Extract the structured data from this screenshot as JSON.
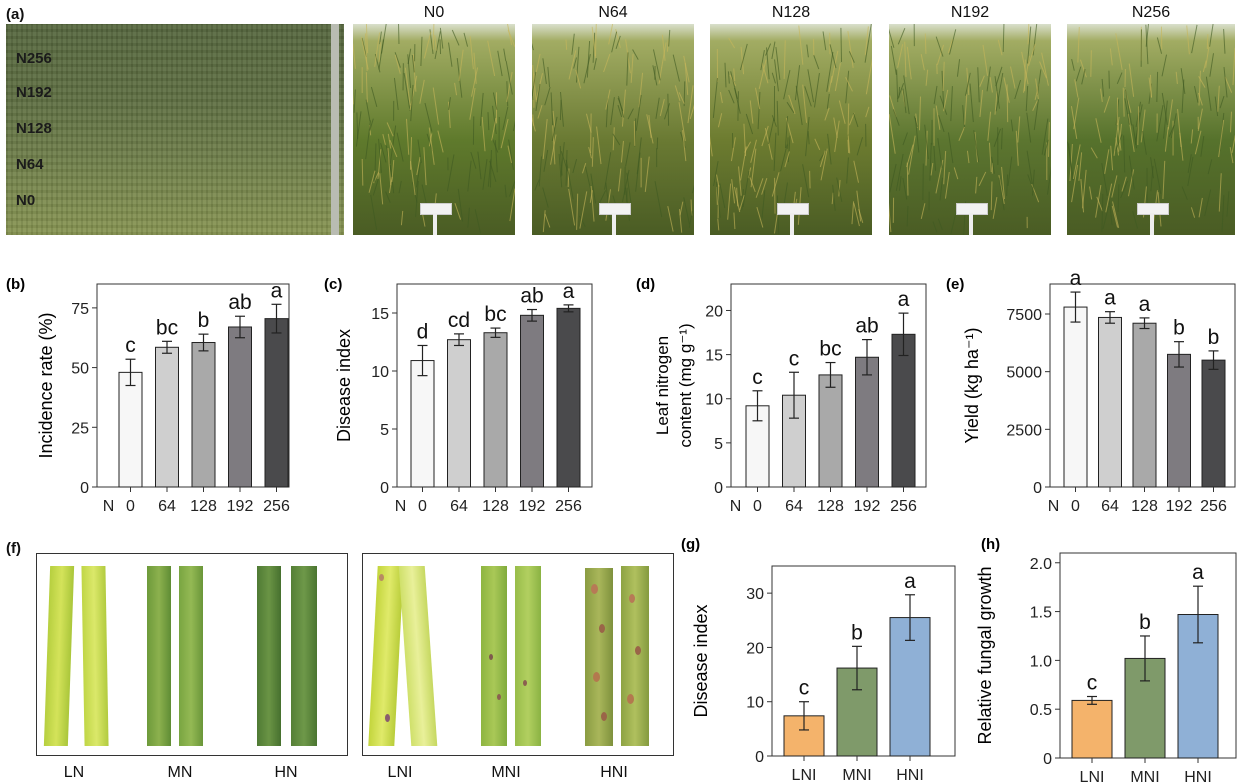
{
  "panel_a": {
    "label": "(a)",
    "aerial_rows": [
      "N256",
      "N192",
      "N128",
      "N64",
      "N0"
    ],
    "field_photos": [
      "N0",
      "N64",
      "N128",
      "N192",
      "N256"
    ]
  },
  "panel_f": {
    "label": "(f)",
    "left_labels": [
      "LN",
      "MN",
      "HN"
    ],
    "right_labels": [
      "LNI",
      "MNI",
      "HNI"
    ]
  },
  "colors": {
    "bar_grays": [
      "#f7f7f7",
      "#cfcfcf",
      "#a9a9a9",
      "#7e7b80",
      "#4a4a4c"
    ],
    "bar_ni": [
      "#f4b36b",
      "#7f9a6a",
      "#8fb0d6"
    ],
    "axis": "#333333"
  },
  "chart_data": [
    {
      "id": "b",
      "panel_label": "(b)",
      "type": "bar",
      "categories": [
        "0",
        "64",
        "128",
        "192",
        "256"
      ],
      "x_prefix": "N",
      "values": [
        48,
        58.5,
        60.5,
        67,
        70.5
      ],
      "errors": [
        5.5,
        2.5,
        3.5,
        4.5,
        6
      ],
      "letters": [
        "c",
        "bc",
        "b",
        "ab",
        "a"
      ],
      "ylabel": "Incidence rate (%)",
      "ylim": [
        0,
        85
      ],
      "yticks": [
        0,
        25,
        50,
        75
      ]
    },
    {
      "id": "c",
      "panel_label": "(c)",
      "type": "bar",
      "categories": [
        "0",
        "64",
        "128",
        "192",
        "256"
      ],
      "x_prefix": "N",
      "values": [
        10.9,
        12.7,
        13.3,
        14.8,
        15.4
      ],
      "errors": [
        1.3,
        0.5,
        0.4,
        0.5,
        0.3
      ],
      "letters": [
        "d",
        "cd",
        "bc",
        "ab",
        "a"
      ],
      "ylabel": "Disease index",
      "ylim": [
        0,
        17.5
      ],
      "yticks": [
        0,
        5,
        10,
        15
      ]
    },
    {
      "id": "d",
      "panel_label": "(d)",
      "type": "bar",
      "categories": [
        "0",
        "64",
        "128",
        "192",
        "256"
      ],
      "x_prefix": "N",
      "values": [
        9.2,
        10.4,
        12.7,
        14.7,
        17.3
      ],
      "errors": [
        1.7,
        2.6,
        1.4,
        2.0,
        2.4
      ],
      "letters": [
        "c",
        "c",
        "bc",
        "ab",
        "a"
      ],
      "ylabel_lines": [
        "Leaf nitrogen",
        "content (mg g⁻¹)"
      ],
      "ylim": [
        0,
        23
      ],
      "yticks": [
        0,
        5,
        10,
        15,
        20
      ]
    },
    {
      "id": "e",
      "panel_label": "(e)",
      "type": "bar",
      "categories": [
        "0",
        "64",
        "128",
        "192",
        "256"
      ],
      "x_prefix": "N",
      "values": [
        7800,
        7350,
        7100,
        5750,
        5500
      ],
      "errors": [
        650,
        250,
        230,
        550,
        400
      ],
      "letters": [
        "a",
        "a",
        "a",
        "b",
        "b"
      ],
      "ylabel": "Yield (kg ha⁻¹)",
      "ylim": [
        0,
        8800
      ],
      "yticks": [
        0,
        2500,
        5000,
        7500
      ]
    },
    {
      "id": "g",
      "panel_label": "(g)",
      "type": "bar",
      "categories": [
        "LNI",
        "MNI",
        "HNI"
      ],
      "values": [
        7.4,
        16.2,
        25.5
      ],
      "errors": [
        2.6,
        4.0,
        4.2
      ],
      "letters": [
        "c",
        "b",
        "a"
      ],
      "ylabel": "Disease index",
      "ylim": [
        0,
        35
      ],
      "yticks": [
        0,
        10,
        20,
        30
      ]
    },
    {
      "id": "h",
      "panel_label": "(h)",
      "type": "bar",
      "categories": [
        "LNI",
        "MNI",
        "HNI"
      ],
      "values": [
        0.59,
        1.02,
        1.47
      ],
      "errors": [
        0.04,
        0.23,
        0.29
      ],
      "letters": [
        "c",
        "b",
        "a"
      ],
      "ylabel": "Relative fungal growth",
      "ylim": [
        0,
        2.1
      ],
      "yticks": [
        "0",
        "0.5",
        "1.0",
        "1.5",
        "2.0"
      ]
    }
  ]
}
